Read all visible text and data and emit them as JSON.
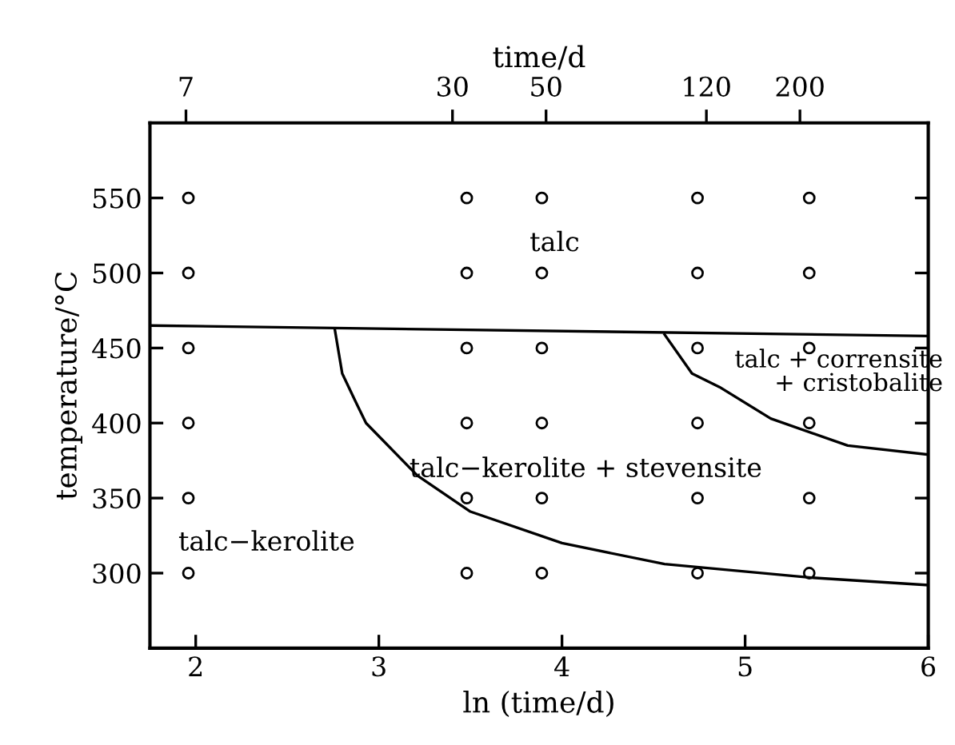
{
  "chart_data": {
    "type": "scatter",
    "xlabel": "ln (time/d)",
    "ylabel": "temperature/°C",
    "x2label": "time/d",
    "xlim": [
      1.75,
      6
    ],
    "xticks": [
      2,
      3,
      4,
      5,
      6
    ],
    "ylim": [
      250,
      600
    ],
    "yticks": [
      300,
      350,
      400,
      450,
      500,
      550
    ],
    "x2lim": [
      5.75,
      403
    ],
    "x2ticks": [
      7,
      30,
      50,
      120,
      200
    ],
    "log": "x2",
    "grid": false,
    "marker": "circle",
    "series": [
      {
        "color": "#000000",
        "x": [
          1.96,
          3.48,
          3.89,
          4.74,
          5.35,
          1.96,
          3.48,
          3.89,
          4.74,
          5.35,
          1.96,
          3.48,
          3.89,
          4.74,
          5.35,
          1.96,
          3.48,
          3.89,
          4.74,
          5.35,
          1.96,
          3.48,
          3.89,
          4.74,
          5.35,
          1.96,
          3.48,
          3.89,
          4.74,
          5.35
        ],
        "values": [
          550,
          550,
          550,
          550,
          550,
          500,
          500,
          500,
          500,
          500,
          450,
          450,
          450,
          450,
          450,
          400,
          400,
          400,
          400,
          400,
          350,
          350,
          350,
          350,
          350,
          300,
          300,
          300,
          300,
          300
        ]
      },
      {
        "type": "line",
        "color": "#000000",
        "marker": "none",
        "x": [
          1.75,
          6
        ],
        "values": [
          465,
          458
        ]
      },
      {
        "type": "line",
        "color": "#000000",
        "marker": "none",
        "x": [
          2.76,
          2.8,
          2.87,
          2.93,
          3.21,
          3.5,
          4.0,
          4.56,
          5.36,
          6
        ],
        "values": [
          462,
          433,
          415,
          400,
          365,
          341,
          320,
          306,
          297,
          292
        ]
      },
      {
        "type": "line",
        "color": "#000000",
        "marker": "none",
        "x": [
          4.56,
          4.71,
          4.86,
          5.14,
          5.56,
          6
        ],
        "values": [
          459,
          433,
          424,
          403,
          385,
          379
        ]
      }
    ],
    "annotations": [
      "talc",
      "talc + corrensite\n+ cristobalite",
      "talc−kerolite + stevensite",
      "talc−kerolite"
    ]
  }
}
